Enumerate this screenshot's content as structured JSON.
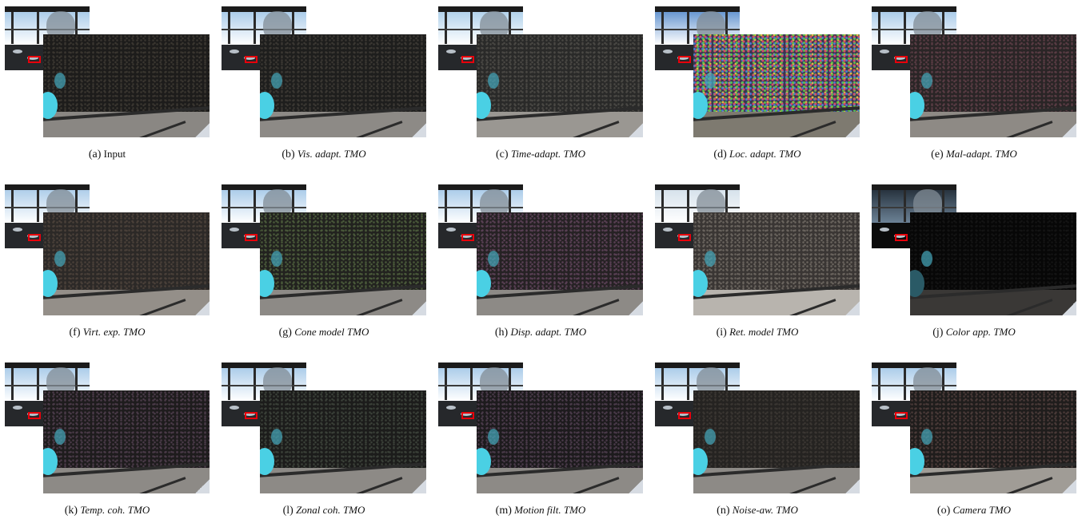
{
  "figure": {
    "panels": [
      {
        "label": "(a)",
        "name": "Input",
        "italic": false,
        "sky": "#9ec4e6",
        "base": "#1d1c1b",
        "dot": "#3a3630",
        "floor": "#8a8783",
        "thumbDark": false
      },
      {
        "label": "(b)",
        "name": "Vis. adapt. TMO",
        "italic": true,
        "sky": "#9ec4e6",
        "base": "#1e1e1d",
        "dot": "#3b3833",
        "floor": "#8d8a86",
        "thumbDark": false
      },
      {
        "label": "(c)",
        "name": "Time-adapt. TMO",
        "italic": true,
        "sky": "#a6cbe8",
        "base": "#2a2a29",
        "dot": "#4a4844",
        "floor": "#9a9792",
        "thumbDark": false
      },
      {
        "label": "(d)",
        "name": "Loc. adapt. TMO",
        "italic": true,
        "sky": "#4f86c9",
        "base": "#3a3550",
        "dot": "#d0a040",
        "floor": "#7e7a70",
        "thumbDark": false,
        "colorful": true
      },
      {
        "label": "(e)",
        "name": "Mal-adapt. TMO",
        "italic": true,
        "sky": "#9ec4e6",
        "base": "#2a2526",
        "dot": "#5a3c44",
        "floor": "#8e8a85",
        "thumbDark": false
      },
      {
        "label": "(f)",
        "name": "Virt. exp. TMO",
        "italic": true,
        "sky": "#a2c6e6",
        "base": "#2c2927",
        "dot": "#4a4039",
        "floor": "#948f89",
        "thumbDark": false
      },
      {
        "label": "(g)",
        "name": "Cone model TMO",
        "italic": true,
        "sky": "#9ec4e6",
        "base": "#22221f",
        "dot": "#4a5a3a",
        "floor": "#8d8a86",
        "thumbDark": false
      },
      {
        "label": "(h)",
        "name": "Disp. adapt. TMO",
        "italic": true,
        "sky": "#9ec4e6",
        "base": "#262224",
        "dot": "#5a4055",
        "floor": "#8d8a86",
        "thumbDark": false
      },
      {
        "label": "(i)",
        "name": "Ret. model TMO",
        "italic": true,
        "sky": "#cfdde8",
        "base": "#3a3634",
        "dot": "#6a645e",
        "floor": "#b8b4ae",
        "thumbDark": false
      },
      {
        "label": "(j)",
        "name": "Color app. TMO",
        "italic": true,
        "sky": "#6c8296",
        "base": "#070707",
        "dot": "#141414",
        "floor": "#3a3836",
        "thumbDark": true
      },
      {
        "label": "(k)",
        "name": "Temp. coh. TMO",
        "italic": true,
        "sky": "#9ec4e6",
        "base": "#1e1c1d",
        "dot": "#4a3a48",
        "floor": "#8d8a86",
        "thumbDark": false
      },
      {
        "label": "(l)",
        "name": "Zonal coh. TMO",
        "italic": true,
        "sky": "#9ec4e6",
        "base": "#1c1c1b",
        "dot": "#3a4038",
        "floor": "#8d8a86",
        "thumbDark": false
      },
      {
        "label": "(m)",
        "name": "Motion filt. TMO",
        "italic": true,
        "sky": "#9ec4e6",
        "base": "#1d1b1d",
        "dot": "#4a3a4a",
        "floor": "#8d8a86",
        "thumbDark": false
      },
      {
        "label": "(n)",
        "name": "Noise-aw. TMO",
        "italic": true,
        "sky": "#9ec4e6",
        "base": "#252321",
        "dot": "#3a3632",
        "floor": "#8d8a86",
        "thumbDark": false
      },
      {
        "label": "(o)",
        "name": "Camera TMO",
        "italic": true,
        "sky": "#9ec4e6",
        "base": "#1f1d1c",
        "dot": "#4a3a38",
        "floor": "#a09c96",
        "thumbDark": false
      }
    ]
  }
}
